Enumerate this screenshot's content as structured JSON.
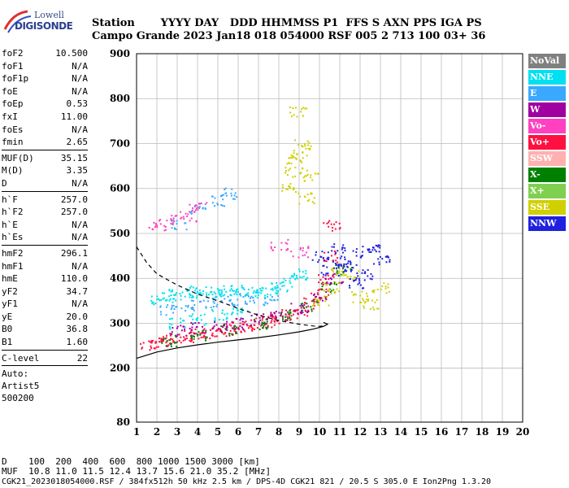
{
  "logo": {
    "top": "Lowell",
    "bottom": "DIGISONDE"
  },
  "header": {
    "line1": "Station       YYYY DAY   DDD HHMMSS P1  FFS S AXN PPS IGA PS",
    "line2": "Campo Grande 2023 Jan18 018 054000 RSF 005 2 713 100 03+ 36"
  },
  "params": {
    "group1": [
      {
        "label": "foF2",
        "value": "10.500"
      },
      {
        "label": "foF1",
        "value": "N/A"
      },
      {
        "label": "foF1p",
        "value": "N/A"
      },
      {
        "label": "foE",
        "value": "N/A"
      },
      {
        "label": "foEp",
        "value": "0.53"
      },
      {
        "label": "fxI",
        "value": "11.00"
      },
      {
        "label": "foEs",
        "value": "N/A"
      },
      {
        "label": "fmin",
        "value": "2.65"
      }
    ],
    "group2": [
      {
        "label": "MUF(D)",
        "value": "35.15"
      },
      {
        "label": "M(D)",
        "value": "3.35"
      },
      {
        "label": "D",
        "value": "N/A"
      }
    ],
    "group3": [
      {
        "label": "h`F",
        "value": "257.0"
      },
      {
        "label": "h`F2",
        "value": "257.0"
      },
      {
        "label": "h`E",
        "value": "N/A"
      },
      {
        "label": "h`Es",
        "value": "N/A"
      }
    ],
    "group4": [
      {
        "label": "hmF2",
        "value": "296.1"
      },
      {
        "label": "hmF1",
        "value": "N/A"
      },
      {
        "label": "hmE",
        "value": "110.0"
      },
      {
        "label": "yF2",
        "value": "34.7"
      },
      {
        "label": "yF1",
        "value": "N/A"
      },
      {
        "label": "yE",
        "value": "20.0"
      },
      {
        "label": "B0",
        "value": "36.8"
      },
      {
        "label": "B1",
        "value": "1.60"
      }
    ],
    "group5": [
      {
        "label": "C-level",
        "value": "22"
      }
    ],
    "notes": [
      "Auto:",
      "Artist5",
      "500200"
    ]
  },
  "legend": [
    {
      "label": "NoVal",
      "color": "#808080"
    },
    {
      "label": "NNE",
      "color": "#00e0f0"
    },
    {
      "label": "E",
      "color": "#3aa8ff"
    },
    {
      "label": "W",
      "color": "#a000a0"
    },
    {
      "label": "Vo-",
      "color": "#ff40c0"
    },
    {
      "label": "Vo+",
      "color": "#ff1040"
    },
    {
      "label": "SSW",
      "color": "#ffb0b0"
    },
    {
      "label": "X-",
      "color": "#008000"
    },
    {
      "label": "X+",
      "color": "#80d050"
    },
    {
      "label": "SSE",
      "color": "#d0d000"
    },
    {
      "label": "NNW",
      "color": "#2020e0"
    }
  ],
  "bottom": {
    "d_line": "D    100  200  400  600  800 1000 1500 3000 [km]",
    "muf_line": "MUF  10.8 11.0 11.5 12.4 13.7 15.6 21.0 35.2 [MHz]",
    "footer": "CGK21_2023018054000.RSF / 384fx512h 50 kHz 2.5 km / DPS-4D CGK21 821 / 20.5 S 305.0 E Ion2Png 1.3.20"
  },
  "chart_data": {
    "type": "scatter",
    "xlim": [
      1,
      20
    ],
    "ylim": [
      80,
      900
    ],
    "x_ticks": [
      1,
      2,
      3,
      4,
      5,
      6,
      7,
      8,
      9,
      10,
      11,
      12,
      13,
      14,
      15,
      16,
      17,
      18,
      19,
      20
    ],
    "y_ticks": [
      80,
      200,
      300,
      400,
      500,
      600,
      700,
      800,
      900
    ],
    "grid": true,
    "series": [
      {
        "name": "Vo+",
        "color": "#ff1040",
        "points": [
          [
            1.5,
            255
          ],
          [
            2,
            258
          ],
          [
            2.5,
            262
          ],
          [
            3,
            268
          ],
          [
            3.5,
            272
          ],
          [
            4,
            276
          ],
          [
            4.5,
            280
          ],
          [
            5,
            284
          ],
          [
            5.5,
            288
          ],
          [
            6,
            292
          ],
          [
            6.5,
            296
          ],
          [
            7,
            300
          ],
          [
            7.5,
            305
          ],
          [
            8,
            312
          ],
          [
            8.5,
            320
          ],
          [
            9,
            330
          ],
          [
            9.5,
            345
          ],
          [
            10,
            365
          ],
          [
            10.3,
            400
          ],
          [
            10.5,
            450
          ],
          [
            10.6,
            520
          ]
        ]
      },
      {
        "name": "X-",
        "color": "#008000",
        "points": [
          [
            2.5,
            262
          ],
          [
            4,
            274
          ],
          [
            5.5,
            286
          ],
          [
            7,
            298
          ],
          [
            8.5,
            318
          ],
          [
            9.5,
            340
          ],
          [
            10.5,
            380
          ],
          [
            11.2,
            420
          ]
        ]
      },
      {
        "name": "NNE",
        "color": "#00e0f0",
        "points": [
          [
            2,
            350
          ],
          [
            2.5,
            360
          ],
          [
            3,
            365
          ],
          [
            3.5,
            370
          ],
          [
            4,
            372
          ],
          [
            4.5,
            370
          ],
          [
            5,
            368
          ],
          [
            5.5,
            372
          ],
          [
            6,
            375
          ],
          [
            6.5,
            370
          ],
          [
            7,
            368
          ],
          [
            7.5,
            375
          ],
          [
            8,
            380
          ],
          [
            8.5,
            395
          ],
          [
            9,
            410
          ],
          [
            3,
            300
          ],
          [
            4,
            310
          ],
          [
            5,
            320
          ],
          [
            6,
            325
          ]
        ]
      },
      {
        "name": "E",
        "color": "#3aa8ff",
        "points": [
          [
            2.5,
            330
          ],
          [
            3.5,
            340
          ],
          [
            4.5,
            345
          ],
          [
            5.5,
            350
          ],
          [
            6.5,
            355
          ],
          [
            7.5,
            350
          ],
          [
            3,
            520
          ],
          [
            4,
            555
          ],
          [
            5,
            575
          ],
          [
            5.5,
            590
          ]
        ]
      },
      {
        "name": "W",
        "color": "#a000a0",
        "points": [
          [
            3,
            285
          ],
          [
            4,
            290
          ],
          [
            5,
            295
          ],
          [
            6,
            300
          ],
          [
            7,
            310
          ],
          [
            8,
            320
          ],
          [
            9,
            335
          ],
          [
            10,
            360
          ],
          [
            10.7,
            400
          ]
        ]
      },
      {
        "name": "SSE",
        "color": "#d0d000",
        "points": [
          [
            8.5,
            600
          ],
          [
            8.7,
            640
          ],
          [
            9,
            680
          ],
          [
            9.2,
            700
          ],
          [
            8.8,
            660
          ],
          [
            10,
            350
          ],
          [
            10.5,
            380
          ],
          [
            11,
            420
          ],
          [
            11.5,
            410
          ],
          [
            12,
            360
          ],
          [
            12.5,
            345
          ],
          [
            13,
            380
          ],
          [
            9.5,
            630
          ],
          [
            8.9,
            770
          ],
          [
            9.3,
            580
          ]
        ]
      },
      {
        "name": "NNW",
        "color": "#2020e0",
        "points": [
          [
            10,
            450
          ],
          [
            10.5,
            420
          ],
          [
            11,
            440
          ],
          [
            11.5,
            430
          ],
          [
            12,
            460
          ],
          [
            12.5,
            470
          ],
          [
            13,
            440
          ],
          [
            11.8,
            390
          ],
          [
            12.2,
            410
          ],
          [
            10.8,
            470
          ]
        ]
      },
      {
        "name": "Vo-",
        "color": "#ff40c0",
        "points": [
          [
            3.5,
            540
          ],
          [
            2,
            520
          ],
          [
            2.5,
            530
          ],
          [
            4,
            560
          ],
          [
            8,
            475
          ],
          [
            9,
            460
          ]
        ]
      }
    ],
    "curves": [
      {
        "name": "model-dashed",
        "style": "dashed",
        "points": [
          [
            1,
            470
          ],
          [
            1.5,
            435
          ],
          [
            2,
            410
          ],
          [
            3,
            385
          ],
          [
            4,
            365
          ],
          [
            5,
            350
          ],
          [
            6,
            333
          ],
          [
            7,
            318
          ],
          [
            8,
            306
          ],
          [
            9,
            298
          ],
          [
            9.7,
            294
          ],
          [
            10,
            293
          ],
          [
            10.3,
            295
          ]
        ]
      },
      {
        "name": "model-solid",
        "style": "solid",
        "points": [
          [
            1,
            222
          ],
          [
            2,
            236
          ],
          [
            3,
            245
          ],
          [
            4,
            252
          ],
          [
            5,
            258
          ],
          [
            6,
            263
          ],
          [
            7,
            268
          ],
          [
            8,
            274
          ],
          [
            9,
            281
          ],
          [
            9.7,
            287
          ],
          [
            10.2,
            293
          ],
          [
            10.4,
            298
          ],
          [
            10.2,
            302
          ]
        ]
      }
    ]
  }
}
